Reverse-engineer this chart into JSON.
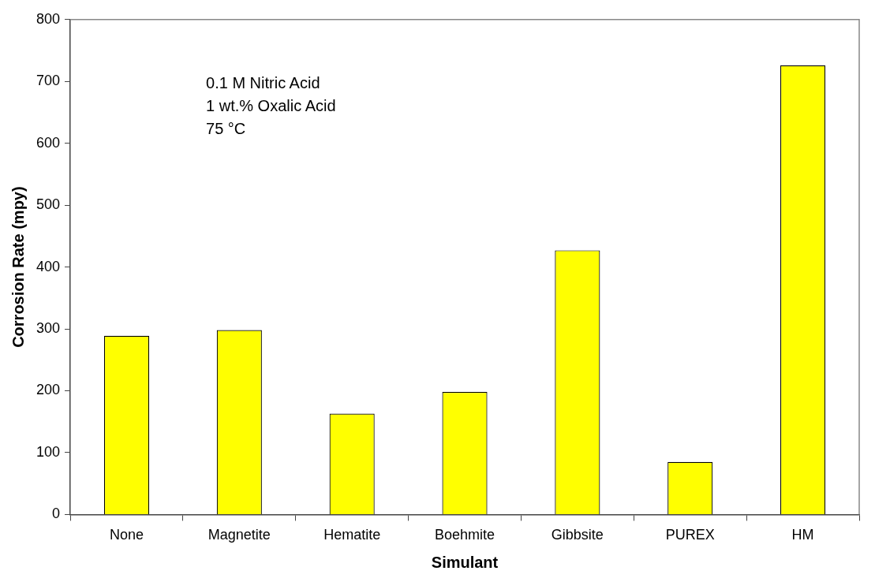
{
  "chart_data": {
    "type": "bar",
    "xlabel": "Simulant",
    "ylabel": "Corrosion Rate (mpy)",
    "categories": [
      "None",
      "Magnetite",
      "Hematite",
      "Boehmite",
      "Gibbsite",
      "PUREX",
      "HM"
    ],
    "values": [
      289,
      298,
      163,
      198,
      427,
      85,
      726
    ],
    "color": "#ffff00",
    "ylim": [
      0,
      800
    ],
    "yticks": [
      0,
      100,
      200,
      300,
      400,
      500,
      600,
      700,
      800
    ],
    "grid": false,
    "legend": false,
    "annotations": [
      "0.1 M Nitric Acid",
      "1 wt.% Oxalic Acid",
      "75 °C"
    ]
  }
}
